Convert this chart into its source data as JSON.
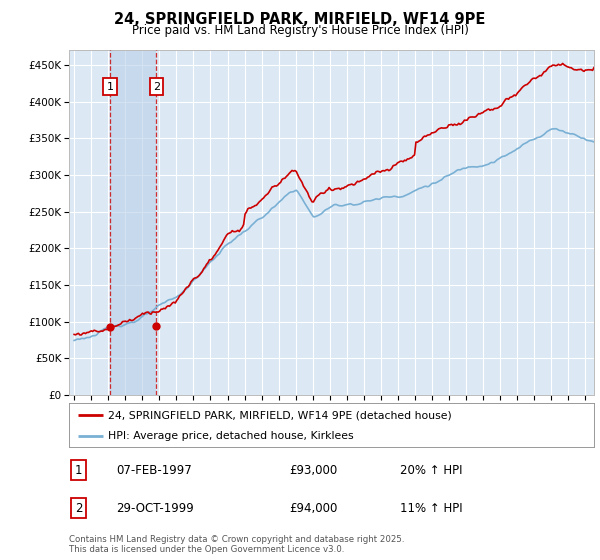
{
  "title": "24, SPRINGFIELD PARK, MIRFIELD, WF14 9PE",
  "subtitle": "Price paid vs. HM Land Registry's House Price Index (HPI)",
  "legend_line1": "24, SPRINGFIELD PARK, MIRFIELD, WF14 9PE (detached house)",
  "legend_line2": "HPI: Average price, detached house, Kirklees",
  "footnote": "Contains HM Land Registry data © Crown copyright and database right 2025.\nThis data is licensed under the Open Government Licence v3.0.",
  "sale1_date": "07-FEB-1997",
  "sale1_price": "£93,000",
  "sale1_hpi": "20% ↑ HPI",
  "sale2_date": "29-OCT-1999",
  "sale2_price": "£94,000",
  "sale2_hpi": "11% ↑ HPI",
  "hpi_color": "#7ab0d4",
  "price_color": "#cc0000",
  "marker_color": "#cc0000",
  "vline_color": "#cc0000",
  "bg_color": "#dce9f5",
  "grid_color": "#ffffff",
  "ylim": [
    0,
    470000
  ],
  "yticks": [
    0,
    50000,
    100000,
    150000,
    200000,
    250000,
    300000,
    350000,
    400000,
    450000
  ],
  "xlim_start": 1994.7,
  "xlim_end": 2025.5,
  "sale1_x": 1997.1,
  "sale1_y": 93000,
  "sale2_x": 1999.83,
  "sale2_y": 94000
}
